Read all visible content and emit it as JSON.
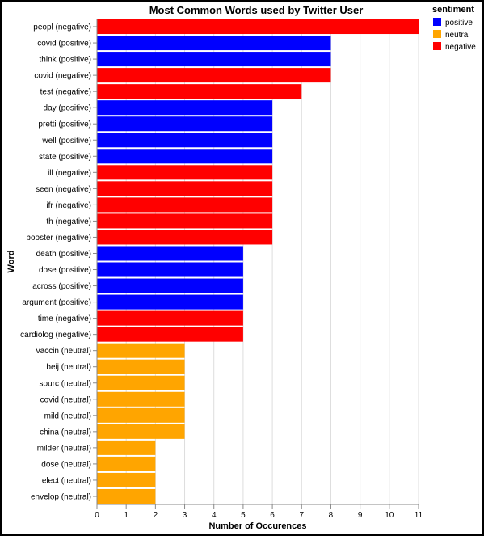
{
  "chart_data": {
    "type": "bar",
    "orientation": "horizontal",
    "title": "Most Common Words used by Twitter User",
    "xlabel": "Number of Occurences",
    "ylabel": "Word",
    "xlim": [
      0,
      11
    ],
    "x_ticks": [
      "0",
      "1",
      "2",
      "3",
      "4",
      "5",
      "6",
      "7",
      "8",
      "9",
      "10",
      "11"
    ],
    "grid": "vertical",
    "legend": {
      "title": "sentiment",
      "placement": "top-right",
      "entries": [
        {
          "label": "positive",
          "color": "#0000ff"
        },
        {
          "label": "neutral",
          "color": "#ffa500"
        },
        {
          "label": "negative",
          "color": "#ff0000"
        }
      ]
    },
    "bars": [
      {
        "category": "peopl (negative)",
        "sentiment": "negative",
        "value": 11
      },
      {
        "category": "covid (positive)",
        "sentiment": "positive",
        "value": 8
      },
      {
        "category": "think (positive)",
        "sentiment": "positive",
        "value": 8
      },
      {
        "category": "covid (negative)",
        "sentiment": "negative",
        "value": 8
      },
      {
        "category": "test (negative)",
        "sentiment": "negative",
        "value": 7
      },
      {
        "category": "day (positive)",
        "sentiment": "positive",
        "value": 6
      },
      {
        "category": "pretti (positive)",
        "sentiment": "positive",
        "value": 6
      },
      {
        "category": "well (positive)",
        "sentiment": "positive",
        "value": 6
      },
      {
        "category": "state (positive)",
        "sentiment": "positive",
        "value": 6
      },
      {
        "category": "ill (negative)",
        "sentiment": "negative",
        "value": 6
      },
      {
        "category": "seen (negative)",
        "sentiment": "negative",
        "value": 6
      },
      {
        "category": "ifr (negative)",
        "sentiment": "negative",
        "value": 6
      },
      {
        "category": "th (negative)",
        "sentiment": "negative",
        "value": 6
      },
      {
        "category": "booster (negative)",
        "sentiment": "negative",
        "value": 6
      },
      {
        "category": "death (positive)",
        "sentiment": "positive",
        "value": 5
      },
      {
        "category": "dose (positive)",
        "sentiment": "positive",
        "value": 5
      },
      {
        "category": "across (positive)",
        "sentiment": "positive",
        "value": 5
      },
      {
        "category": "argument (positive)",
        "sentiment": "positive",
        "value": 5
      },
      {
        "category": "time (negative)",
        "sentiment": "negative",
        "value": 5
      },
      {
        "category": "cardiolog (negative)",
        "sentiment": "negative",
        "value": 5
      },
      {
        "category": "vaccin (neutral)",
        "sentiment": "neutral",
        "value": 3
      },
      {
        "category": "beij (neutral)",
        "sentiment": "neutral",
        "value": 3
      },
      {
        "category": "sourc (neutral)",
        "sentiment": "neutral",
        "value": 3
      },
      {
        "category": "covid (neutral)",
        "sentiment": "neutral",
        "value": 3
      },
      {
        "category": "mild (neutral)",
        "sentiment": "neutral",
        "value": 3
      },
      {
        "category": "china (neutral)",
        "sentiment": "neutral",
        "value": 3
      },
      {
        "category": "milder (neutral)",
        "sentiment": "neutral",
        "value": 2
      },
      {
        "category": "dose (neutral)",
        "sentiment": "neutral",
        "value": 2
      },
      {
        "category": "elect (neutral)",
        "sentiment": "neutral",
        "value": 2
      },
      {
        "category": "envelop (neutral)",
        "sentiment": "neutral",
        "value": 2
      }
    ]
  }
}
